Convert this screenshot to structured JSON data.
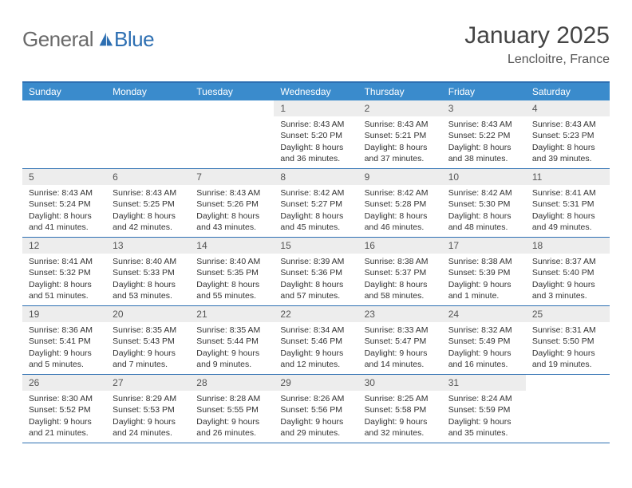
{
  "logo": {
    "general": "General",
    "blue": "Blue",
    "icon_color": "#2d6fb2"
  },
  "header": {
    "title": "January 2025",
    "location": "Lencloitre, France"
  },
  "colors": {
    "header_bg": "#3a8bcc",
    "rule": "#2d6fb2",
    "daynum_bg": "#ededed",
    "text": "#333333"
  },
  "weekdays": [
    "Sunday",
    "Monday",
    "Tuesday",
    "Wednesday",
    "Thursday",
    "Friday",
    "Saturday"
  ],
  "startOffset": 3,
  "days": [
    {
      "n": 1,
      "sunrise": "8:43 AM",
      "sunset": "5:20 PM",
      "dl_h": 8,
      "dl_m": 36
    },
    {
      "n": 2,
      "sunrise": "8:43 AM",
      "sunset": "5:21 PM",
      "dl_h": 8,
      "dl_m": 37
    },
    {
      "n": 3,
      "sunrise": "8:43 AM",
      "sunset": "5:22 PM",
      "dl_h": 8,
      "dl_m": 38
    },
    {
      "n": 4,
      "sunrise": "8:43 AM",
      "sunset": "5:23 PM",
      "dl_h": 8,
      "dl_m": 39
    },
    {
      "n": 5,
      "sunrise": "8:43 AM",
      "sunset": "5:24 PM",
      "dl_h": 8,
      "dl_m": 41
    },
    {
      "n": 6,
      "sunrise": "8:43 AM",
      "sunset": "5:25 PM",
      "dl_h": 8,
      "dl_m": 42
    },
    {
      "n": 7,
      "sunrise": "8:43 AM",
      "sunset": "5:26 PM",
      "dl_h": 8,
      "dl_m": 43
    },
    {
      "n": 8,
      "sunrise": "8:42 AM",
      "sunset": "5:27 PM",
      "dl_h": 8,
      "dl_m": 45
    },
    {
      "n": 9,
      "sunrise": "8:42 AM",
      "sunset": "5:28 PM",
      "dl_h": 8,
      "dl_m": 46
    },
    {
      "n": 10,
      "sunrise": "8:42 AM",
      "sunset": "5:30 PM",
      "dl_h": 8,
      "dl_m": 48
    },
    {
      "n": 11,
      "sunrise": "8:41 AM",
      "sunset": "5:31 PM",
      "dl_h": 8,
      "dl_m": 49
    },
    {
      "n": 12,
      "sunrise": "8:41 AM",
      "sunset": "5:32 PM",
      "dl_h": 8,
      "dl_m": 51
    },
    {
      "n": 13,
      "sunrise": "8:40 AM",
      "sunset": "5:33 PM",
      "dl_h": 8,
      "dl_m": 53
    },
    {
      "n": 14,
      "sunrise": "8:40 AM",
      "sunset": "5:35 PM",
      "dl_h": 8,
      "dl_m": 55
    },
    {
      "n": 15,
      "sunrise": "8:39 AM",
      "sunset": "5:36 PM",
      "dl_h": 8,
      "dl_m": 57
    },
    {
      "n": 16,
      "sunrise": "8:38 AM",
      "sunset": "5:37 PM",
      "dl_h": 8,
      "dl_m": 58
    },
    {
      "n": 17,
      "sunrise": "8:38 AM",
      "sunset": "5:39 PM",
      "dl_h": 9,
      "dl_m": 1
    },
    {
      "n": 18,
      "sunrise": "8:37 AM",
      "sunset": "5:40 PM",
      "dl_h": 9,
      "dl_m": 3
    },
    {
      "n": 19,
      "sunrise": "8:36 AM",
      "sunset": "5:41 PM",
      "dl_h": 9,
      "dl_m": 5
    },
    {
      "n": 20,
      "sunrise": "8:35 AM",
      "sunset": "5:43 PM",
      "dl_h": 9,
      "dl_m": 7
    },
    {
      "n": 21,
      "sunrise": "8:35 AM",
      "sunset": "5:44 PM",
      "dl_h": 9,
      "dl_m": 9
    },
    {
      "n": 22,
      "sunrise": "8:34 AM",
      "sunset": "5:46 PM",
      "dl_h": 9,
      "dl_m": 12
    },
    {
      "n": 23,
      "sunrise": "8:33 AM",
      "sunset": "5:47 PM",
      "dl_h": 9,
      "dl_m": 14
    },
    {
      "n": 24,
      "sunrise": "8:32 AM",
      "sunset": "5:49 PM",
      "dl_h": 9,
      "dl_m": 16
    },
    {
      "n": 25,
      "sunrise": "8:31 AM",
      "sunset": "5:50 PM",
      "dl_h": 9,
      "dl_m": 19
    },
    {
      "n": 26,
      "sunrise": "8:30 AM",
      "sunset": "5:52 PM",
      "dl_h": 9,
      "dl_m": 21
    },
    {
      "n": 27,
      "sunrise": "8:29 AM",
      "sunset": "5:53 PM",
      "dl_h": 9,
      "dl_m": 24
    },
    {
      "n": 28,
      "sunrise": "8:28 AM",
      "sunset": "5:55 PM",
      "dl_h": 9,
      "dl_m": 26
    },
    {
      "n": 29,
      "sunrise": "8:26 AM",
      "sunset": "5:56 PM",
      "dl_h": 9,
      "dl_m": 29
    },
    {
      "n": 30,
      "sunrise": "8:25 AM",
      "sunset": "5:58 PM",
      "dl_h": 9,
      "dl_m": 32
    },
    {
      "n": 31,
      "sunrise": "8:24 AM",
      "sunset": "5:59 PM",
      "dl_h": 9,
      "dl_m": 35
    }
  ],
  "labels": {
    "sunrise": "Sunrise:",
    "sunset": "Sunset:",
    "daylight": "Daylight:",
    "hours": "hours",
    "and": "and",
    "minutes": "minutes.",
    "minute": "minute."
  }
}
